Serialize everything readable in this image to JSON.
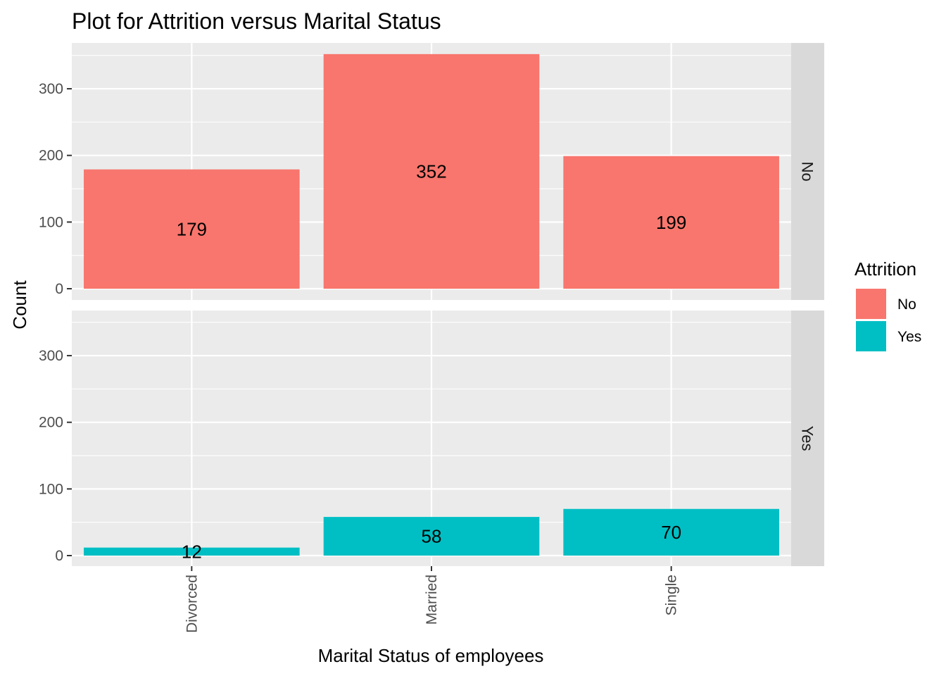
{
  "chart_data": {
    "type": "bar",
    "title": "Plot for Attrition versus Marital Status",
    "xlabel": "Marital Status of employees",
    "ylabel": "Count",
    "categories": [
      "Divorced",
      "Married",
      "Single"
    ],
    "ylim": [
      0,
      370
    ],
    "yticks": [
      0,
      100,
      200,
      300
    ],
    "grid": true,
    "facet_by": "Attrition",
    "series": [
      {
        "name": "No",
        "facet_label": "No",
        "color": "#F8766D",
        "values": [
          179,
          352,
          199
        ]
      },
      {
        "name": "Yes",
        "facet_label": "Yes",
        "color": "#00BFC4",
        "values": [
          12,
          58,
          70
        ]
      }
    ],
    "legend": {
      "title": "Attrition",
      "placement": "right",
      "entries": [
        {
          "label": "No",
          "color": "#F8766D"
        },
        {
          "label": "Yes",
          "color": "#00BFC4"
        }
      ]
    },
    "colors": {
      "panel_background": "#EBEBEB",
      "grid": "#FFFFFF",
      "strip_background": "#D9D9D9"
    }
  }
}
